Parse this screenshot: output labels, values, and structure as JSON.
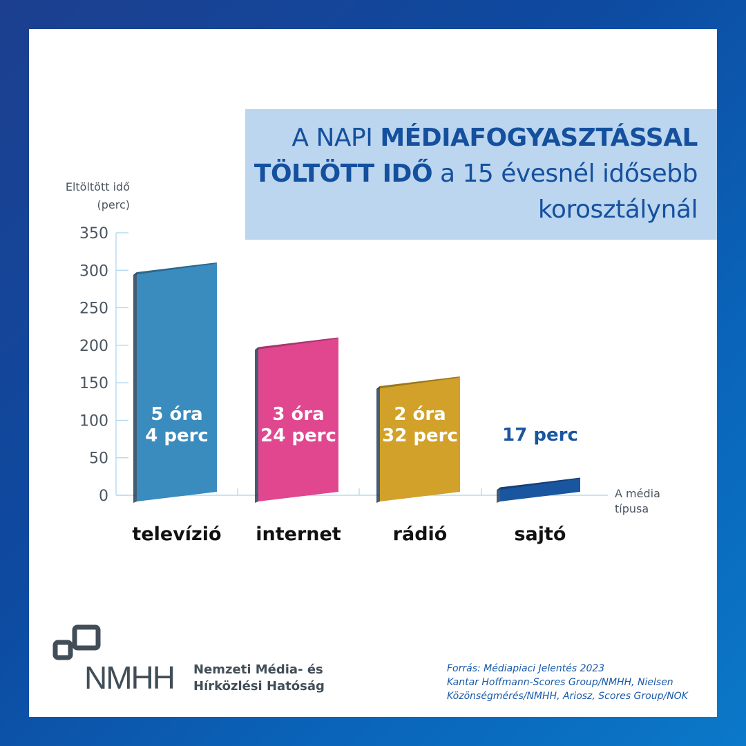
{
  "title": {
    "line1_normal": "A NAPI ",
    "line1_bold": "MÉDIAFOGYASZTÁSSAL",
    "line2_bold": "TÖLTÖTT IDŐ",
    "line2_normal": " a 15 évesnél idősebb",
    "line3": "korosztálynál"
  },
  "chart_data": {
    "type": "bar",
    "title": "A NAPI MÉDIAFOGYASZTÁSSAL TÖLTÖTT IDŐ a 15 évesnél idősebb korosztálynál",
    "ylabel_line1": "Eltöltött idő",
    "ylabel_line2": "(perc)",
    "xlabel_line1": "A média",
    "xlabel_line2": "típusa",
    "ylim": [
      0,
      350
    ],
    "yticks": [
      "0",
      "50",
      "100",
      "150",
      "200",
      "250",
      "300",
      "350"
    ],
    "categories": [
      "televízió",
      "internet",
      "rádió",
      "sajtó"
    ],
    "values": [
      304,
      204,
      152,
      17
    ],
    "labels_line1": [
      "5 óra",
      "3 óra",
      "2 óra",
      "17 perc"
    ],
    "labels_line2": [
      "4 perc",
      "24 perc",
      "32 perc",
      ""
    ],
    "colors": [
      "#3a8bbe",
      "#e0478f",
      "#d1a129",
      "#1a56a0"
    ]
  },
  "logo": {
    "abbr": "NMHH",
    "line1": "Nemzeti Média- és",
    "line2": "Hírközlési Hatóság"
  },
  "source": {
    "line1": "Forrás: Médiapiaci Jelentés 2023",
    "line2": "Kantar Hoffmann-Scores Group/NMHH, Nielsen",
    "line3": "Közönségmérés/NMHH, Ariosz, Scores Group/NOK"
  }
}
